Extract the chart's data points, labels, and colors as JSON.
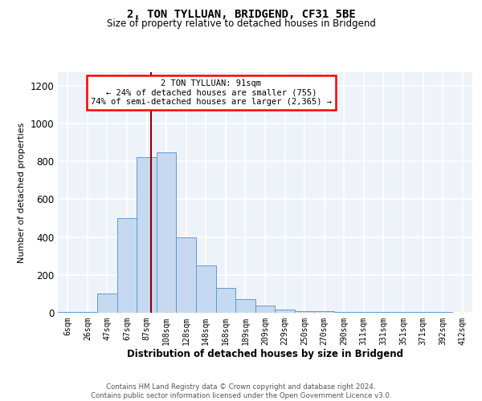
{
  "title1": "2, TON TYLLUAN, BRIDGEND, CF31 5BE",
  "title2": "Size of property relative to detached houses in Bridgend",
  "xlabel": "Distribution of detached houses by size in Bridgend",
  "ylabel": "Number of detached properties",
  "annotation_line1": "2 TON TYLLUAN: 91sqm",
  "annotation_line2": "← 24% of detached houses are smaller (755)",
  "annotation_line3": "74% of semi-detached houses are larger (2,365) →",
  "footnote1": "Contains HM Land Registry data © Crown copyright and database right 2024.",
  "footnote2": "Contains public sector information licensed under the Open Government Licence v3.0.",
  "bin_labels": [
    "6sqm",
    "26sqm",
    "47sqm",
    "67sqm",
    "87sqm",
    "108sqm",
    "128sqm",
    "148sqm",
    "168sqm",
    "189sqm",
    "209sqm",
    "229sqm",
    "250sqm",
    "270sqm",
    "290sqm",
    "311sqm",
    "331sqm",
    "351sqm",
    "371sqm",
    "392sqm",
    "412sqm"
  ],
  "bar_values": [
    4,
    4,
    100,
    500,
    820,
    845,
    400,
    250,
    130,
    70,
    40,
    18,
    10,
    8,
    5,
    5,
    3,
    3,
    4,
    3,
    0
  ],
  "bar_color": "#c6d9f0",
  "bar_edge_color": "#5b9bd5",
  "red_line_bin": 4.24,
  "ylim_max": 1270,
  "background_color": "#eef3fa"
}
